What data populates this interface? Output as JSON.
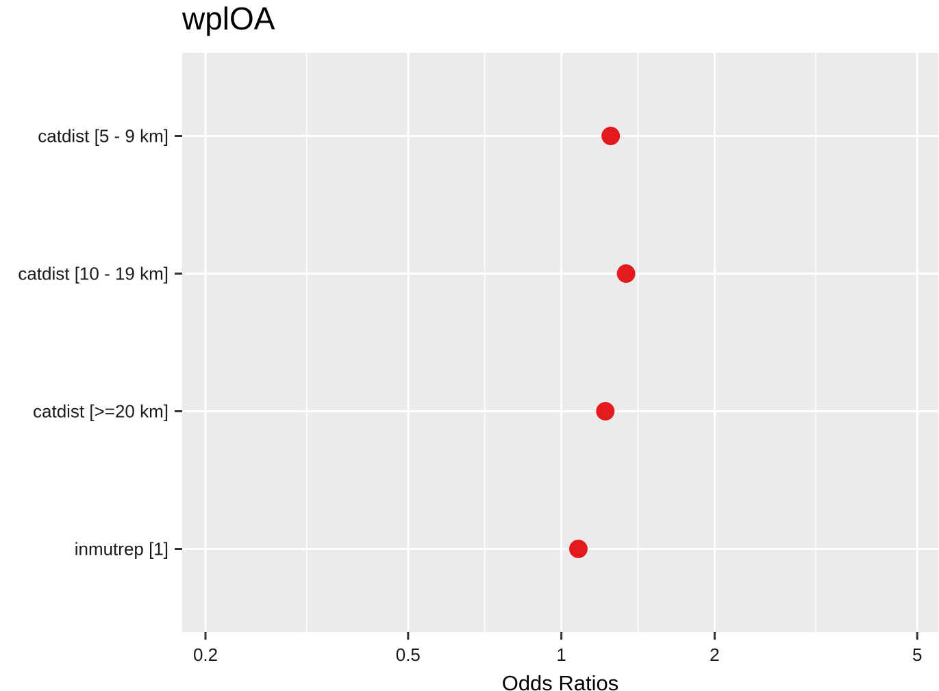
{
  "chart_data": {
    "type": "scatter",
    "title": "wplOA",
    "xlabel": "Odds Ratios",
    "ylabel": "",
    "x_scale": "log",
    "xlim": [
      0.18,
      5.5
    ],
    "xticks": [
      {
        "value": 0.2,
        "label": "0.2"
      },
      {
        "value": 0.5,
        "label": "0.5"
      },
      {
        "value": 1,
        "label": "1"
      },
      {
        "value": 2,
        "label": "2"
      },
      {
        "value": 5,
        "label": "5"
      }
    ],
    "x_minor_gridlines": [
      0.316,
      0.707,
      1.414,
      3.162
    ],
    "categories": [
      "catdist [5 - 9 km]",
      "catdist [10 - 19 km]",
      "catdist [>=20 km]",
      "inmutrep [1]"
    ],
    "series": [
      {
        "values": [
          1.25,
          1.34,
          1.22,
          1.08
        ],
        "ci_low": [
          1.23,
          1.32,
          1.2,
          1.04
        ],
        "ci_high": [
          1.27,
          1.36,
          1.24,
          1.12
        ]
      }
    ],
    "grid": true,
    "legend": "none",
    "colors": {
      "point": "#e41a1c",
      "panel_bg": "#ebebeb",
      "grid": "#ffffff",
      "tick": "#333333"
    }
  }
}
